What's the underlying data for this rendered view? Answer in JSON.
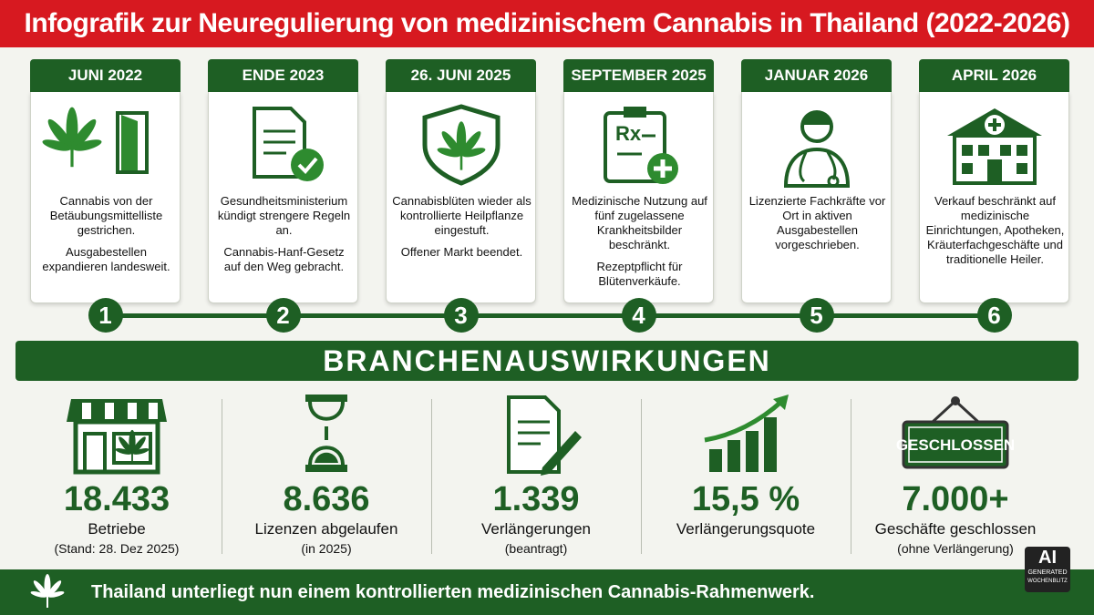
{
  "header": {
    "title": "Infografik zur Neuregulierung von medizinischem Cannabis in Thailand (2022-2026)"
  },
  "timeline": [
    {
      "date": "JUNI 2022",
      "paragraphs": [
        "Cannabis von der Betäubungsmittelliste gestrichen.",
        "Ausgabestellen expandieren landesweit."
      ],
      "step": "1"
    },
    {
      "date": "ENDE 2023",
      "paragraphs": [
        "Gesundheitsministerium kündigt strengere Regeln an.",
        "Cannabis-Hanf-Gesetz auf den Weg gebracht."
      ],
      "step": "2"
    },
    {
      "date": "26. JUNI 2025",
      "paragraphs": [
        "Cannabisblüten wieder als kontrollierte Heilpflanze eingestuft.",
        "Offener Markt beendet."
      ],
      "step": "3"
    },
    {
      "date": "SEPTEMBER 2025",
      "paragraphs": [
        "Medizinische Nutzung auf fünf zugelassene Krankheitsbilder beschränkt.",
        "Rezeptpflicht für Blütenverkäufe."
      ],
      "step": "4"
    },
    {
      "date": "JANUAR 2026",
      "paragraphs": [
        "Lizenzierte Fachkräfte vor Ort in aktiven Ausgabestellen vorgeschrieben."
      ],
      "step": "5"
    },
    {
      "date": "APRIL 2026",
      "paragraphs": [
        "Verkauf beschränkt auf medizinische Einrichtungen, Apotheken, Kräuterfachgeschäfte und traditionelle Heiler."
      ],
      "step": "6"
    }
  ],
  "impact": {
    "title": "BRANCHENAUSWIRKUNGEN",
    "sign_text": "GESCHLOSSEN",
    "stats": [
      {
        "value": "18.433",
        "label": "Betriebe",
        "note": "(Stand: 28. Dez 2025)"
      },
      {
        "value": "8.636",
        "label": "Lizenzen abgelaufen",
        "note": "(in 2025)"
      },
      {
        "value": "1.339",
        "label": "Verlängerungen",
        "note": "(beantragt)"
      },
      {
        "value": "15,5 %",
        "label": "Verlängerungsquote"
      },
      {
        "value": "7.000+",
        "label": "Geschäfte geschlossen",
        "note": "(ohne Verlängerung)"
      }
    ]
  },
  "footer": {
    "text": "Thailand unterliegt nun einem kontrollierten medizinischen Cannabis-Rahmenwerk."
  },
  "badge": {
    "title": "AI",
    "line1": "GENERATED",
    "line2": "WOCHENBLITZ"
  }
}
